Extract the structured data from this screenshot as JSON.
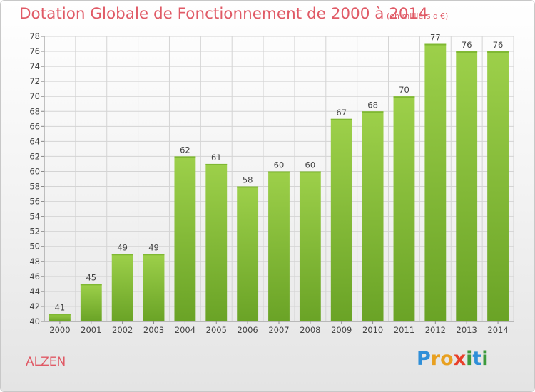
{
  "chart_data": {
    "type": "bar",
    "title": "Dotation Globale de Fonctionnement de 2000 à 2014",
    "unit": "(en milliers d'€)",
    "categories": [
      "2000",
      "2001",
      "2002",
      "2003",
      "2004",
      "2005",
      "2006",
      "2007",
      "2008",
      "2009",
      "2010",
      "2011",
      "2012",
      "2013",
      "2014"
    ],
    "values": [
      41,
      45,
      49,
      49,
      62,
      61,
      58,
      60,
      60,
      67,
      68,
      70,
      77,
      76,
      76
    ],
    "ylim": [
      40,
      78
    ],
    "ytick_step": 2,
    "grid": true,
    "bar_color": "#8cc43c",
    "bar_color_dark": "#6da52a"
  },
  "town": "ALZEN",
  "logo": {
    "letters": [
      "P",
      "r",
      "o",
      "x",
      "i",
      "t",
      "i"
    ],
    "colors": [
      "#2f8fd8",
      "#e8a020",
      "#e8a020",
      "#e8402a",
      "#3c9a3c",
      "#2f8fd8",
      "#3c9a3c"
    ]
  },
  "colors": {
    "title": "#e05a66",
    "grid": "#d4d4d4",
    "axis_text": "#444444"
  }
}
